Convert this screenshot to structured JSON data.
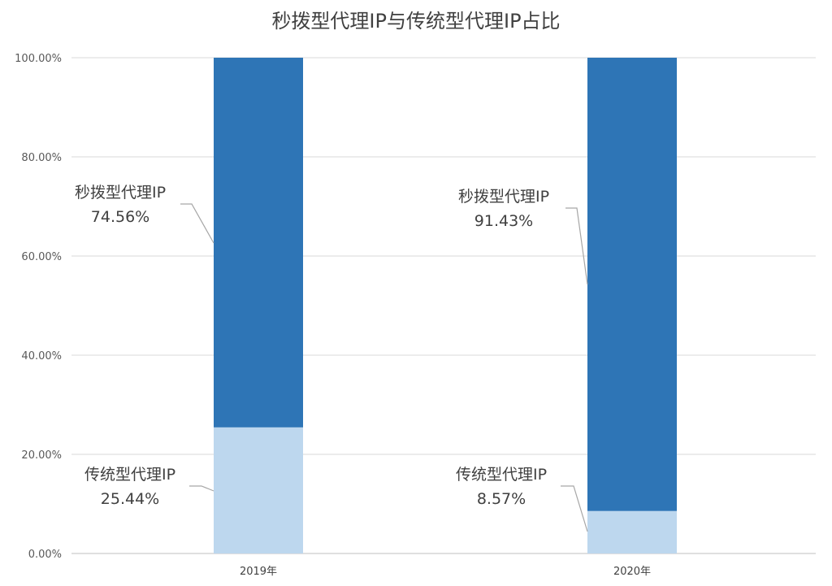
{
  "chart_data": {
    "type": "bar",
    "stacked": true,
    "title": "秒拨型代理IP与传统型代理IP占比",
    "categories": [
      "2019年",
      "2020年"
    ],
    "series": [
      {
        "name": "传统型代理IP",
        "values": [
          25.44,
          8.57
        ],
        "labels": [
          "25.44%",
          "8.57%"
        ],
        "color": "#bdd7ee"
      },
      {
        "name": "秒拨型代理IP",
        "values": [
          74.56,
          91.43
        ],
        "labels": [
          "74.56%",
          "91.43%"
        ],
        "color": "#2e75b6"
      }
    ],
    "ylim": [
      0,
      100
    ],
    "yticks": [
      "0.00%",
      "20.00%",
      "40.00%",
      "60.00%",
      "80.00%",
      "100.00%"
    ],
    "grid": true,
    "legend": "none"
  }
}
